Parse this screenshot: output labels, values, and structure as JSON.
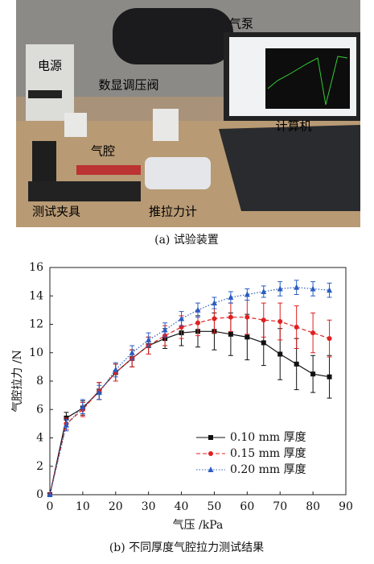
{
  "photo": {
    "caption": "(a) 试验装置",
    "labels": [
      "气泵",
      "电源",
      "数显调压阀",
      "计算机",
      "气腔",
      "测试夹具",
      "推拉力计"
    ]
  },
  "chart_data": {
    "type": "line",
    "title": "(b) 不同厚度气腔拉力测试结果",
    "x_label": "气压 /kPa",
    "y_label": "气腔拉力 /N",
    "x": [
      0,
      5,
      10,
      15,
      20,
      25,
      30,
      35,
      40,
      45,
      50,
      55,
      60,
      65,
      70,
      75,
      80,
      85
    ],
    "xlim": [
      0,
      90
    ],
    "xticks": [
      0,
      10,
      20,
      30,
      40,
      50,
      60,
      70,
      80,
      90
    ],
    "ylim": [
      0,
      16
    ],
    "yticks": [
      0,
      2,
      4,
      6,
      8,
      10,
      12,
      14,
      16
    ],
    "series": [
      {
        "name": "0.10 mm 厚度",
        "color": "#111111",
        "dash": "none",
        "marker": "square",
        "values": [
          0,
          5.4,
          6.1,
          7.3,
          8.6,
          9.6,
          10.5,
          11.0,
          11.4,
          11.5,
          11.5,
          11.3,
          11.1,
          10.7,
          9.9,
          9.2,
          8.5,
          8.3
        ],
        "errors": [
          0,
          0.4,
          0.5,
          0.6,
          0.6,
          0.6,
          0.6,
          0.7,
          0.9,
          1.1,
          1.3,
          1.5,
          1.6,
          1.6,
          1.8,
          1.8,
          1.3,
          1.5
        ]
      },
      {
        "name": "0.15 mm 厚度",
        "color": "#e02020",
        "dash": "5,3",
        "marker": "circle",
        "values": [
          0,
          5.0,
          6.0,
          7.3,
          8.6,
          9.6,
          10.5,
          11.2,
          11.8,
          12.1,
          12.4,
          12.5,
          12.5,
          12.3,
          12.2,
          11.8,
          11.4,
          11.0
        ],
        "errors": [
          0,
          0.4,
          0.5,
          0.6,
          0.6,
          0.6,
          0.6,
          0.7,
          0.8,
          0.9,
          1.0,
          1.0,
          1.2,
          1.2,
          1.3,
          1.5,
          1.4,
          1.3
        ]
      },
      {
        "name": "0.20 mm 厚度",
        "color": "#2a5cc0",
        "dash": "1.5,2",
        "marker": "triangle",
        "values": [
          0,
          4.9,
          6.2,
          7.2,
          8.8,
          10.0,
          10.9,
          11.6,
          12.4,
          13.0,
          13.5,
          13.9,
          14.1,
          14.3,
          14.5,
          14.6,
          14.5,
          14.4
        ],
        "errors": [
          0,
          0.4,
          0.5,
          0.5,
          0.5,
          0.5,
          0.5,
          0.5,
          0.5,
          0.5,
          0.4,
          0.4,
          0.4,
          0.4,
          0.5,
          0.5,
          0.5,
          0.5
        ]
      }
    ]
  }
}
